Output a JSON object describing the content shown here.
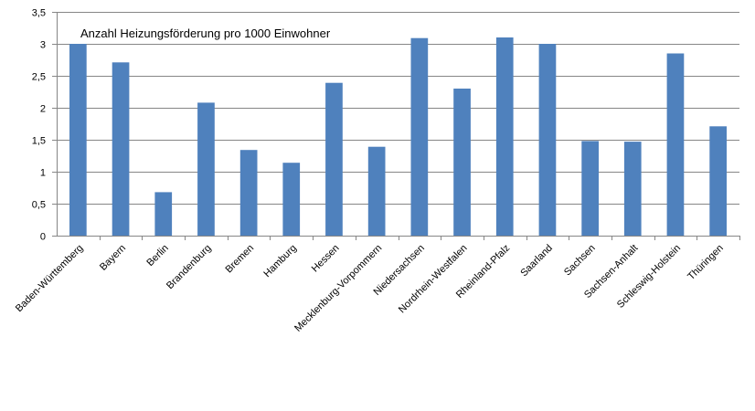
{
  "chart_data": {
    "type": "bar",
    "title": "Anzahl Heizungsförderung pro 1000 Einwohner",
    "xlabel": "",
    "ylabel": "",
    "categories": [
      "Baden-Württemberg",
      "Bayern",
      "Berlin",
      "Brandenburg",
      "Bremen",
      "Hamburg",
      "Hessen",
      "Mecklenburg-Vorpommern",
      "Niedersachsen",
      "Nordrhein-Westfalen",
      "Rheinland-Pfalz",
      "Saarland",
      "Sachsen",
      "Sachsen-Anhalt",
      "Schleswig-Holstein",
      "Thüringen"
    ],
    "values": [
      3.0,
      2.71,
      0.68,
      2.08,
      1.34,
      1.14,
      2.39,
      1.39,
      3.09,
      2.3,
      3.1,
      3.0,
      1.48,
      1.47,
      2.85,
      1.71
    ],
    "ylim": [
      0,
      3.5
    ],
    "yticks": [
      0,
      0.5,
      1,
      1.5,
      2,
      2.5,
      3,
      3.5
    ],
    "ytick_labels": [
      "0",
      "0,5",
      "1",
      "1,5",
      "2",
      "2,5",
      "3",
      "3,5"
    ],
    "grid": true,
    "legend": "none",
    "bar_color": "#4f81bd",
    "grid_color": "#868686",
    "axis_color": "#868686"
  }
}
